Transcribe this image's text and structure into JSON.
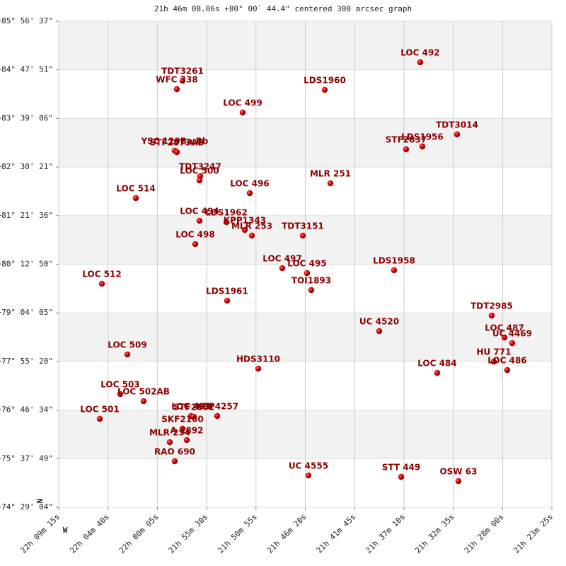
{
  "chart_data": {
    "type": "scatter",
    "title": "21h 46m 08.06s +80° 00′ 44.4\" centered 300 arcsec graph",
    "north_label": "N",
    "west_label": "W",
    "color": "#cc0000",
    "label_color": "#8b0000",
    "labels": [
      "LOC 492",
      "TDT3261",
      "WFC 338",
      "LDS1960",
      "LOC 499",
      "TDT3014",
      "LDS1956",
      "STF2837",
      "YSC 129Ba,Bb",
      "STF2873AB",
      "TDT3247",
      "LOC 500",
      "LOC 496",
      "MLR 251",
      "LOC 514",
      "LOC 494",
      "LDS1962",
      "KPP1343",
      "MLR 253",
      "TDT3151",
      "LOC 498",
      "LOC 497",
      "LOC 495",
      "LDS1958",
      "TOI1893",
      "LOC 512",
      "LDS1961",
      "TDT2985",
      "UC 4520",
      "LOC 487",
      "UC 4469",
      "LOC 509",
      "HU  771",
      "LOC 486",
      "HDS3110",
      "LOC 484",
      "LOC 503",
      "LOC 502AB",
      "LOC 501",
      "LOC 493",
      "STF2801",
      "KPP4257",
      "SKF2160",
      "A 1892",
      "MLR 254",
      "RAO 690",
      "UC 4555",
      "STT 449",
      "OSW  63"
    ],
    "x": [
      21.5942,
      21.9624,
      21.9712,
      21.7421,
      21.8692,
      21.5372,
      21.5909,
      21.6161,
      21.9745,
      21.9712,
      21.935,
      21.9361,
      21.8583,
      21.7333,
      22.0347,
      21.9361,
      21.8944,
      21.866,
      21.855,
      21.7761,
      21.9427,
      21.8079,
      21.7695,
      21.6347,
      21.7629,
      22.0873,
      21.8934,
      21.4835,
      21.6577,
      21.4637,
      21.4517,
      22.0479,
      21.4802,
      21.4594,
      21.8451,
      21.5679,
      22.0589,
      22.0227,
      22.0906,
      21.9493,
      21.9449,
      21.9087,
      21.9624,
      21.9558,
      21.9821,
      21.9745,
      21.7673,
      21.6237,
      21.535
    ],
    "y": [
      84.9762,
      84.5425,
      84.3423,
      84.3256,
      83.7919,
      83.2748,
      82.9912,
      82.9245,
      82.8912,
      82.8578,
      82.2907,
      82.1906,
      81.8904,
      82.1239,
      81.7736,
      81.2398,
      81.2065,
      81.023,
      80.8896,
      80.8896,
      80.6894,
      80.1223,
      80.0055,
      80.0722,
      79.6052,
      79.7553,
      79.355,
      79.0047,
      78.6378,
      78.4876,
      78.3542,
      78.0873,
      77.9205,
      77.7204,
      77.7537,
      77.6536,
      77.1532,
      76.9864,
      76.5694,
      76.6362,
      76.6195,
      76.6362,
      76.3359,
      76.069,
      76.019,
      75.5686,
      75.235,
      75.2017,
      75.1016
    ],
    "xlim": [
      22.15417,
      21.39028
    ],
    "ylim": [
      74.48444,
      85.94361
    ],
    "xticks": [
      {
        "value": 22.15417,
        "label": "22h 09m 15s"
      },
      {
        "value": 22.07778,
        "label": "22h 04m 40s"
      },
      {
        "value": 22.00139,
        "label": "22h 00m 05s"
      },
      {
        "value": 21.925,
        "label": "21h 55m 30s"
      },
      {
        "value": 21.84861,
        "label": "21h 50m 55s"
      },
      {
        "value": 21.77222,
        "label": "21h 46m 20s"
      },
      {
        "value": 21.69583,
        "label": "21h 41m 45s"
      },
      {
        "value": 21.61944,
        "label": "21h 37m 10s"
      },
      {
        "value": 21.54306,
        "label": "21h 32m 35s"
      },
      {
        "value": 21.46667,
        "label": "21h 28m 00s"
      },
      {
        "value": 21.39028,
        "label": "21h 23m 25s"
      }
    ],
    "yticks": [
      {
        "value": 85.94361,
        "label": "+85° 56' 37\""
      },
      {
        "value": 84.7975,
        "label": "+84° 47' 51\""
      },
      {
        "value": 83.65167,
        "label": "+83° 39' 06\""
      },
      {
        "value": 82.50583,
        "label": "+82° 30' 21\""
      },
      {
        "value": 81.36,
        "label": "+81° 21' 36\""
      },
      {
        "value": 80.21389,
        "label": "+80° 12' 50\""
      },
      {
        "value": 79.06806,
        "label": "+79° 04' 05\""
      },
      {
        "value": 77.92222,
        "label": "+77° 55' 20\""
      },
      {
        "value": 76.77611,
        "label": "+76° 46' 34\""
      },
      {
        "value": 75.63028,
        "label": "+75° 37' 49\""
      },
      {
        "value": 74.48444,
        "label": "+74° 29' 04\""
      }
    ],
    "grid": true,
    "banded": true
  }
}
